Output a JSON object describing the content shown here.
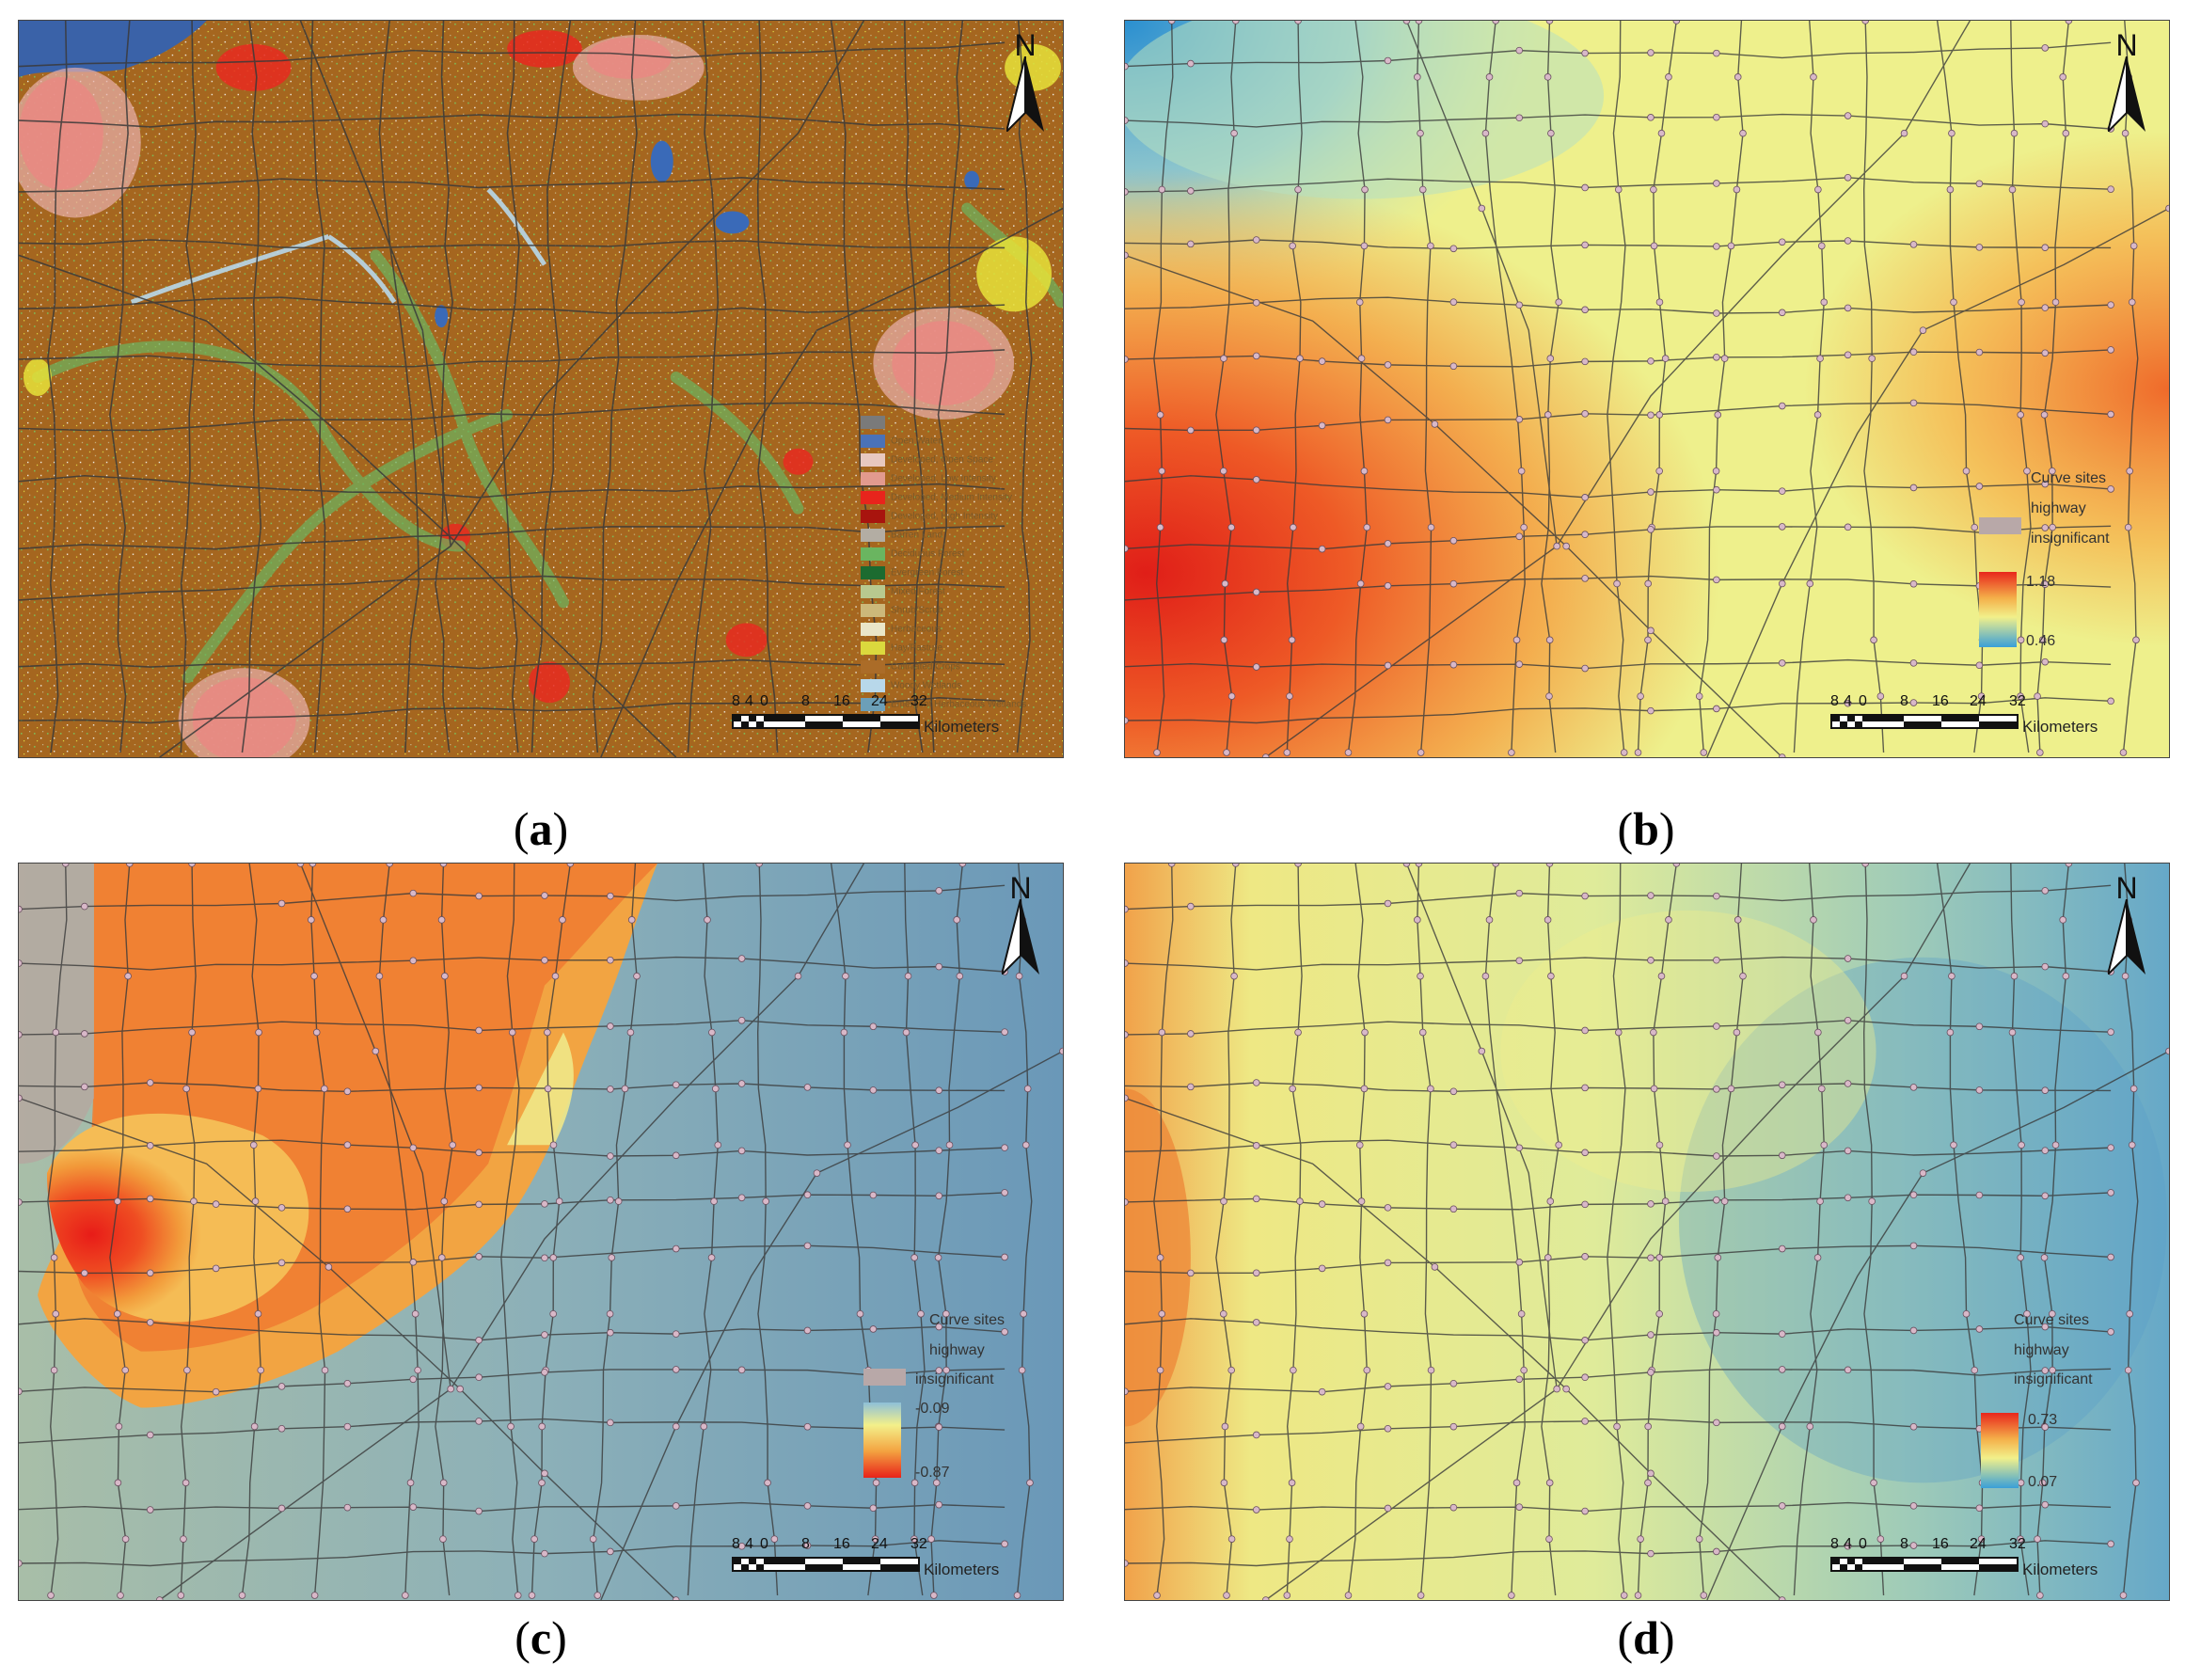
{
  "panels": {
    "a": {
      "caption_letter": "a",
      "landcover_legend": [
        {
          "label": "",
          "color": "#7a7a7a"
        },
        {
          "label": "Open Water",
          "color": "#4a72b8"
        },
        {
          "label": "Developed, Open Space",
          "color": "#e8c8c0"
        },
        {
          "label": "Developed, Low Intensity",
          "color": "#e29a8e"
        },
        {
          "label": "Developed, Medium Intensity",
          "color": "#e8241c"
        },
        {
          "label": "Developed, High Intensity",
          "color": "#a8140e"
        },
        {
          "label": "Barren Land",
          "color": "#b3ada3"
        },
        {
          "label": "Deciduous Forest",
          "color": "#6ab560"
        },
        {
          "label": "Evergreen Forest",
          "color": "#1c6b30"
        },
        {
          "label": "Mixed Forest",
          "color": "#b8c98f"
        },
        {
          "label": "Shrub/Scrub",
          "color": "#ccb87a"
        },
        {
          "label": "Herbaceous",
          "color": "#eae6c8"
        },
        {
          "label": "Hay/Pasture",
          "color": "#dbd93d"
        },
        {
          "label": "Cultivated Crops",
          "color": "#ab6c28"
        },
        {
          "label": "Woody Wetlands",
          "color": "#b8d8ea"
        },
        {
          "label": "Emergent Herbaceous Wetlands",
          "color": "#6c9fb8"
        }
      ],
      "north_label": "N",
      "scale_ticks": [
        "8",
        "4",
        "0",
        "8",
        "16",
        "24",
        "32"
      ],
      "scale_unit": "Kilometers"
    },
    "b": {
      "caption_letter": "b",
      "legend": {
        "curve_sites": "Curve sites",
        "highway": "highway",
        "insignificant": "insignificant",
        "high": "1.18",
        "low": "0.46"
      },
      "north_label": "N",
      "scale_ticks": [
        "8",
        "4",
        "0",
        "8",
        "16",
        "24",
        "32"
      ],
      "scale_unit": "Kilometers"
    },
    "c": {
      "caption_letter": "c",
      "legend": {
        "curve_sites": "Curve sites",
        "highway": "highway",
        "insignificant": "insignificant",
        "high": "-0.09",
        "low": "-0.87"
      },
      "north_label": "N",
      "scale_ticks": [
        "8",
        "4",
        "0",
        "8",
        "16",
        "24",
        "32"
      ],
      "scale_unit": "Kilometers"
    },
    "d": {
      "caption_letter": "d",
      "legend": {
        "curve_sites": "Curve sites",
        "highway": "highway",
        "insignificant": "insignificant",
        "high": "0.73",
        "low": "0.07"
      },
      "north_label": "N",
      "scale_ticks": [
        "8",
        "4",
        "0",
        "8",
        "16",
        "24",
        "32"
      ],
      "scale_unit": "Kilometers"
    }
  },
  "colors": {
    "crop": "#a5661f",
    "warm_red": "#e8251c",
    "orange": "#f09a3c",
    "yellow": "#eef08a",
    "pale_green": "#d8e8a0",
    "steel_blue": "#6a9ab8",
    "sky_blue": "#3aa0d8",
    "insignificant_gray": "#b8a8a8",
    "road": "#3a3a3a",
    "site_dot": "#d8b8c8"
  }
}
